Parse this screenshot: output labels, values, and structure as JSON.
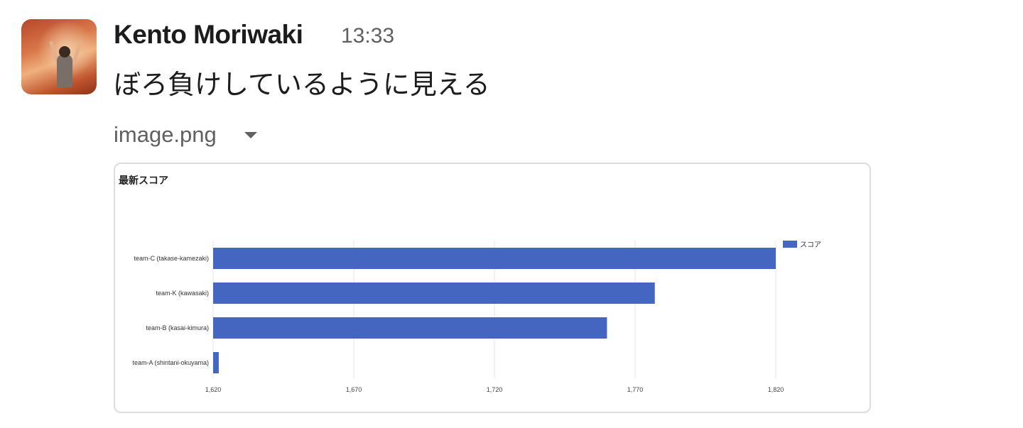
{
  "message": {
    "author": "Kento Moriwaki",
    "timestamp": "13:33",
    "text": "ぼろ負けしているように見える",
    "file_name": "image.png"
  },
  "colors": {
    "bar": "#4466c1",
    "text": "#1d1c1d",
    "muted": "#616061"
  },
  "chart_data": {
    "type": "bar",
    "orientation": "horizontal",
    "title": "最新スコア",
    "categories": [
      "team-C (takase-kamezaki)",
      "team-K (kawasaki)",
      "team-B (kasai-kimura)",
      "team-A (shintani-okuyama)"
    ],
    "series": [
      {
        "name": "スコア",
        "values": [
          1820,
          1777,
          1760,
          1622
        ]
      }
    ],
    "xlim": [
      1620,
      1820
    ],
    "xticks": [
      "1,620",
      "1,670",
      "1,720",
      "1,770",
      "1,820"
    ],
    "legend": "top-right",
    "grid": true
  }
}
